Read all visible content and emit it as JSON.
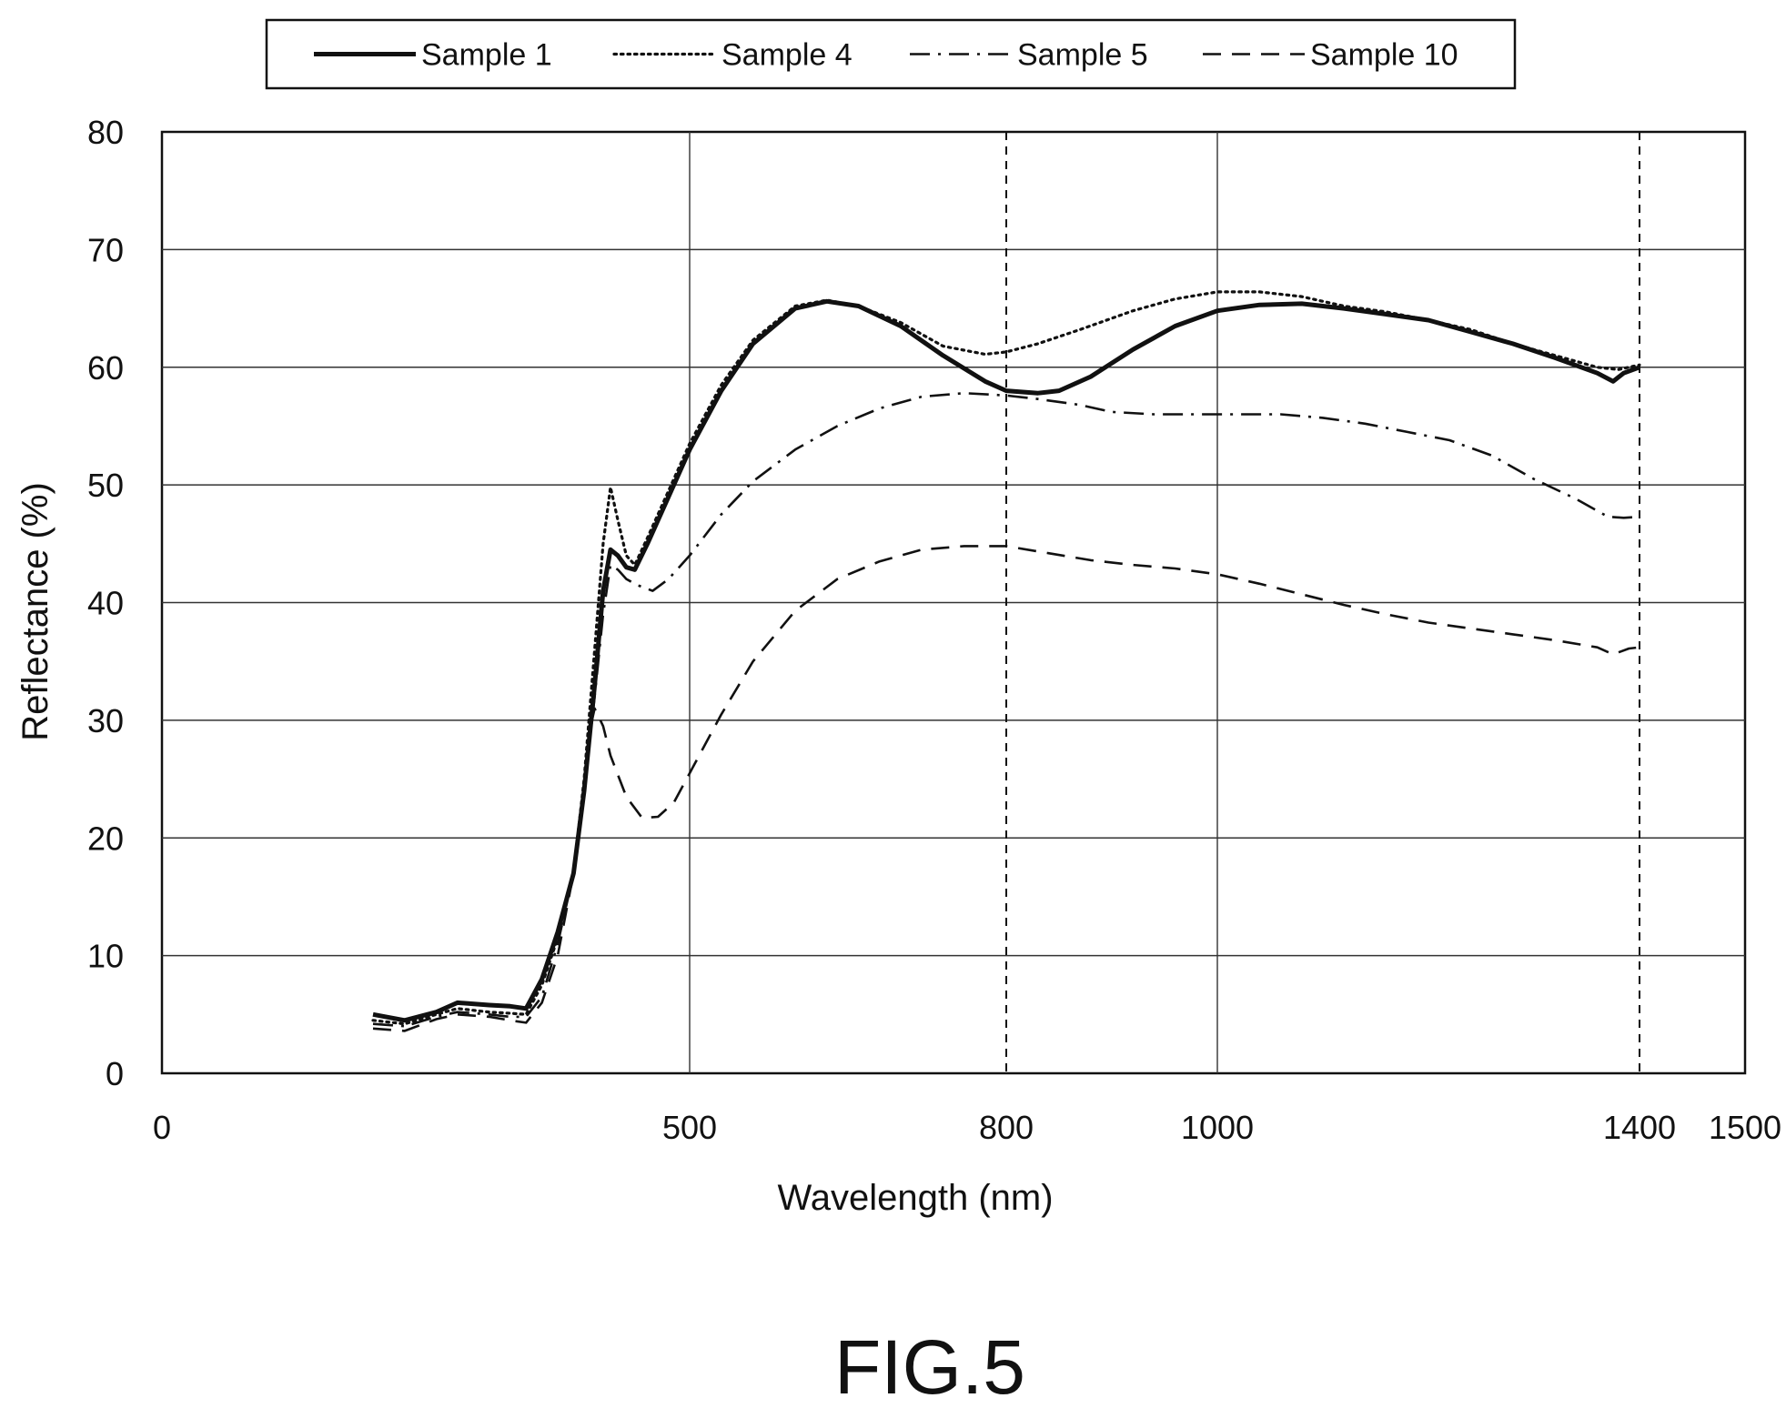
{
  "figure_label": "FIG.5",
  "chart_data": {
    "type": "line",
    "xlabel": "Wavelength (nm)",
    "ylabel": "Reflectance (%)",
    "xlim": [
      0,
      1500
    ],
    "ylim": [
      0,
      80
    ],
    "x_ticks": [
      "0",
      "500",
      "800",
      "1000",
      "1400",
      "1500"
    ],
    "x_tick_values": [
      0,
      500,
      800,
      1000,
      1400,
      1500
    ],
    "y_ticks": [
      "0",
      "10",
      "20",
      "30",
      "40",
      "50",
      "60",
      "70",
      "80"
    ],
    "y_tick_values": [
      0,
      10,
      20,
      30,
      40,
      50,
      60,
      70,
      80
    ],
    "x_gridlines": [
      500,
      1000
    ],
    "y_gridlines": [
      10,
      20,
      30,
      40,
      50,
      60,
      70
    ],
    "reference_lines": [
      800,
      1400
    ],
    "legend_position": "top",
    "series": [
      {
        "name": "Sample 1",
        "style": "solid",
        "points": [
          [
            200,
            5
          ],
          [
            230,
            4.5
          ],
          [
            260,
            5.2
          ],
          [
            280,
            6
          ],
          [
            310,
            5.8
          ],
          [
            330,
            5.7
          ],
          [
            345,
            5.5
          ],
          [
            360,
            8
          ],
          [
            375,
            12
          ],
          [
            390,
            17
          ],
          [
            400,
            24
          ],
          [
            410,
            33
          ],
          [
            418,
            41
          ],
          [
            425,
            44.5
          ],
          [
            432,
            44
          ],
          [
            440,
            43
          ],
          [
            448,
            42.8
          ],
          [
            460,
            45
          ],
          [
            480,
            49
          ],
          [
            500,
            53
          ],
          [
            530,
            58
          ],
          [
            560,
            62
          ],
          [
            600,
            65
          ],
          [
            630,
            65.6
          ],
          [
            660,
            65.2
          ],
          [
            700,
            63.5
          ],
          [
            740,
            61
          ],
          [
            780,
            58.8
          ],
          [
            800,
            58
          ],
          [
            830,
            57.8
          ],
          [
            850,
            58
          ],
          [
            880,
            59.2
          ],
          [
            920,
            61.5
          ],
          [
            960,
            63.5
          ],
          [
            1000,
            64.8
          ],
          [
            1040,
            65.3
          ],
          [
            1080,
            65.4
          ],
          [
            1120,
            65
          ],
          [
            1160,
            64.5
          ],
          [
            1200,
            64
          ],
          [
            1240,
            63
          ],
          [
            1280,
            62
          ],
          [
            1320,
            60.8
          ],
          [
            1360,
            59.5
          ],
          [
            1375,
            58.8
          ],
          [
            1385,
            59.5
          ],
          [
            1400,
            60
          ]
        ]
      },
      {
        "name": "Sample 4",
        "style": "dotted",
        "points": [
          [
            200,
            4.5
          ],
          [
            230,
            4.2
          ],
          [
            260,
            5
          ],
          [
            280,
            5.5
          ],
          [
            310,
            5.2
          ],
          [
            330,
            5.1
          ],
          [
            345,
            5
          ],
          [
            360,
            7.5
          ],
          [
            375,
            11.5
          ],
          [
            390,
            17
          ],
          [
            400,
            25
          ],
          [
            410,
            36
          ],
          [
            418,
            45
          ],
          [
            425,
            49.8
          ],
          [
            432,
            47
          ],
          [
            440,
            44
          ],
          [
            448,
            43.2
          ],
          [
            460,
            45.5
          ],
          [
            480,
            49.5
          ],
          [
            500,
            53.5
          ],
          [
            530,
            58.5
          ],
          [
            560,
            62.3
          ],
          [
            600,
            65.2
          ],
          [
            630,
            65.7
          ],
          [
            660,
            65.2
          ],
          [
            700,
            63.8
          ],
          [
            740,
            61.8
          ],
          [
            780,
            61.1
          ],
          [
            800,
            61.3
          ],
          [
            830,
            62
          ],
          [
            870,
            63.2
          ],
          [
            920,
            64.8
          ],
          [
            960,
            65.8
          ],
          [
            1000,
            66.4
          ],
          [
            1040,
            66.4
          ],
          [
            1080,
            66
          ],
          [
            1120,
            65.2
          ],
          [
            1160,
            64.7
          ],
          [
            1200,
            64
          ],
          [
            1240,
            63.2
          ],
          [
            1280,
            62
          ],
          [
            1320,
            61
          ],
          [
            1360,
            60
          ],
          [
            1380,
            59.8
          ],
          [
            1400,
            60.2
          ]
        ]
      },
      {
        "name": "Sample 5",
        "style": "dashdot",
        "points": [
          [
            200,
            4.2
          ],
          [
            230,
            4
          ],
          [
            260,
            4.8
          ],
          [
            280,
            5.2
          ],
          [
            310,
            5
          ],
          [
            330,
            4.8
          ],
          [
            345,
            4.8
          ],
          [
            360,
            6.5
          ],
          [
            375,
            11
          ],
          [
            390,
            17
          ],
          [
            400,
            24
          ],
          [
            410,
            32
          ],
          [
            418,
            39
          ],
          [
            425,
            43.2
          ],
          [
            432,
            42.8
          ],
          [
            440,
            42
          ],
          [
            450,
            41.5
          ],
          [
            465,
            41
          ],
          [
            480,
            42
          ],
          [
            500,
            44
          ],
          [
            530,
            47.5
          ],
          [
            560,
            50.3
          ],
          [
            600,
            53
          ],
          [
            640,
            55
          ],
          [
            680,
            56.5
          ],
          [
            720,
            57.5
          ],
          [
            760,
            57.8
          ],
          [
            800,
            57.6
          ],
          [
            830,
            57.3
          ],
          [
            870,
            56.8
          ],
          [
            900,
            56.2
          ],
          [
            940,
            56
          ],
          [
            980,
            56
          ],
          [
            1020,
            56
          ],
          [
            1060,
            56
          ],
          [
            1100,
            55.7
          ],
          [
            1140,
            55.2
          ],
          [
            1180,
            54.5
          ],
          [
            1220,
            53.8
          ],
          [
            1260,
            52.5
          ],
          [
            1300,
            50.5
          ],
          [
            1340,
            48.8
          ],
          [
            1370,
            47.3
          ],
          [
            1385,
            47.2
          ],
          [
            1400,
            47.3
          ]
        ]
      },
      {
        "name": "Sample 10",
        "style": "dashed",
        "points": [
          [
            200,
            3.8
          ],
          [
            230,
            3.6
          ],
          [
            260,
            4.6
          ],
          [
            280,
            5
          ],
          [
            310,
            4.8
          ],
          [
            330,
            4.5
          ],
          [
            345,
            4.3
          ],
          [
            360,
            6
          ],
          [
            375,
            10
          ],
          [
            390,
            17
          ],
          [
            400,
            24
          ],
          [
            405,
            29
          ],
          [
            410,
            31
          ],
          [
            418,
            29.5
          ],
          [
            425,
            27
          ],
          [
            440,
            23.5
          ],
          [
            455,
            21.7
          ],
          [
            470,
            21.8
          ],
          [
            485,
            23
          ],
          [
            500,
            25.5
          ],
          [
            530,
            30.5
          ],
          [
            560,
            35
          ],
          [
            600,
            39.3
          ],
          [
            640,
            42
          ],
          [
            680,
            43.5
          ],
          [
            720,
            44.5
          ],
          [
            760,
            44.8
          ],
          [
            800,
            44.8
          ],
          [
            840,
            44.2
          ],
          [
            880,
            43.6
          ],
          [
            920,
            43.2
          ],
          [
            960,
            42.9
          ],
          [
            1000,
            42.4
          ],
          [
            1040,
            41.6
          ],
          [
            1080,
            40.7
          ],
          [
            1120,
            39.8
          ],
          [
            1160,
            39
          ],
          [
            1200,
            38.3
          ],
          [
            1240,
            37.8
          ],
          [
            1280,
            37.3
          ],
          [
            1320,
            36.8
          ],
          [
            1360,
            36.2
          ],
          [
            1375,
            35.6
          ],
          [
            1390,
            36.1
          ],
          [
            1400,
            36.2
          ]
        ]
      }
    ]
  }
}
